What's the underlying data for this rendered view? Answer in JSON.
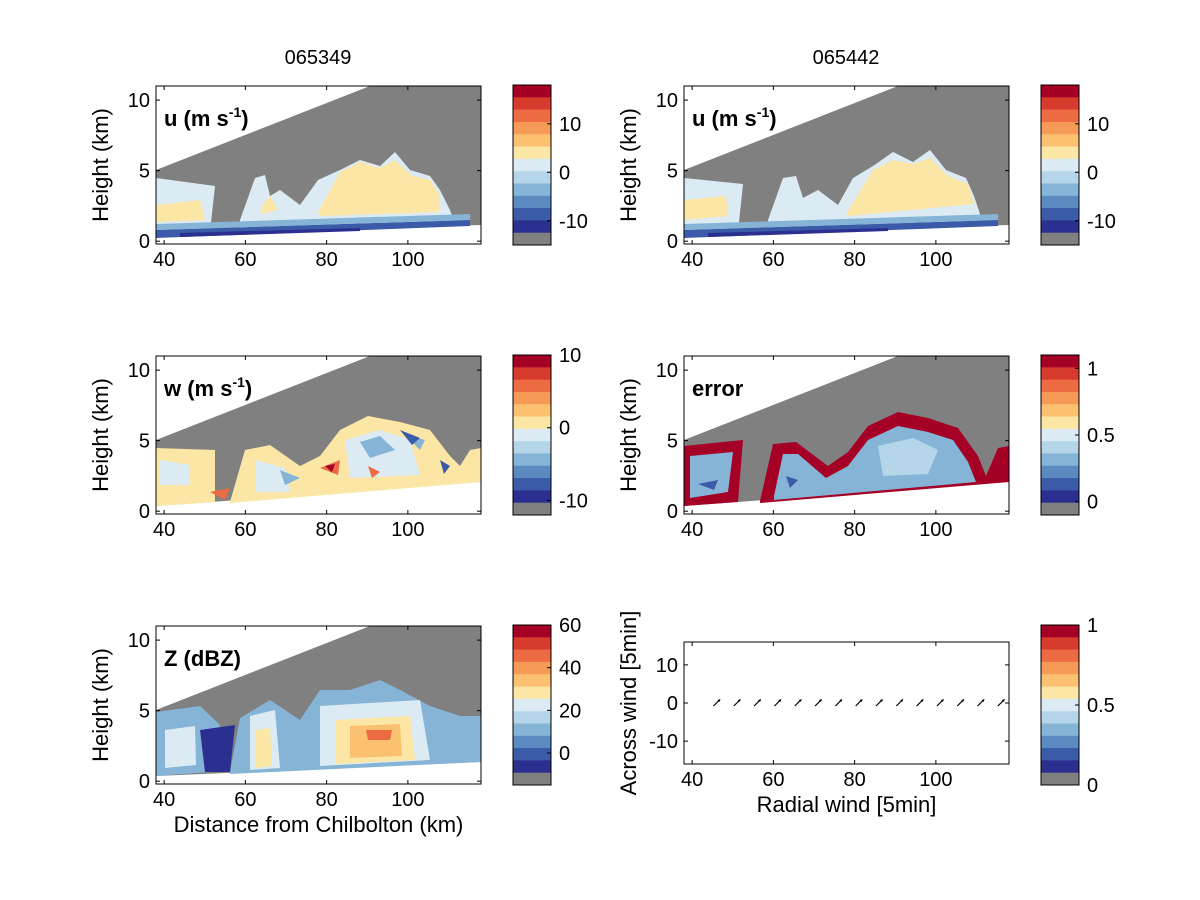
{
  "columns": [
    {
      "title": "065349"
    },
    {
      "title": "065442"
    }
  ],
  "colors": {
    "rdylbu": [
      "#2b2f8f",
      "#3b5ba8",
      "#5a8ac0",
      "#86b4d6",
      "#b5d6e8",
      "#dcebf3",
      "#fce6a6",
      "#fbc170",
      "#f69a57",
      "#ec6b43",
      "#d73b2e",
      "#a50026"
    ],
    "missing": "#808080",
    "frame": "#000000"
  },
  "chart_data": [
    {
      "type": "heatmap",
      "panel": "u",
      "label": "u (m s",
      "label_sup": "-1",
      "label_suffix": ")",
      "ylabel": "Height (km)",
      "xlabel": "",
      "xticks": [
        40,
        60,
        80,
        100
      ],
      "yticks": [
        0,
        5,
        10
      ],
      "xlim": [
        38,
        118
      ],
      "ylim": [
        -0.2,
        11
      ],
      "colorbar": {
        "ticks": [
          "10",
          "0",
          "-10"
        ],
        "tick_values": [
          10,
          0,
          -10
        ],
        "range": [
          -15,
          18
        ]
      },
      "field": "zonal wind u"
    },
    {
      "type": "heatmap",
      "panel": "u",
      "label": "u (m s",
      "label_sup": "-1",
      "label_suffix": ")",
      "ylabel": "Height (km)",
      "xlabel": "",
      "xticks": [
        40,
        60,
        80,
        100
      ],
      "yticks": [
        0,
        5,
        10
      ],
      "xlim": [
        38,
        118
      ],
      "ylim": [
        -0.2,
        11
      ],
      "colorbar": {
        "ticks": [
          "10",
          "0",
          "-10"
        ],
        "tick_values": [
          10,
          0,
          -10
        ],
        "range": [
          -15,
          18
        ]
      },
      "field": "zonal wind u"
    },
    {
      "type": "heatmap",
      "panel": "w",
      "label": "w (m s",
      "label_sup": "-1",
      "label_suffix": ")",
      "ylabel": "Height (km)",
      "xlabel": "",
      "xticks": [
        40,
        60,
        80,
        100
      ],
      "yticks": [
        0,
        5,
        10
      ],
      "xlim": [
        38,
        118
      ],
      "ylim": [
        -0.2,
        11
      ],
      "colorbar": {
        "ticks": [
          "10",
          "0",
          "-10"
        ],
        "tick_values": [
          10,
          0,
          -10
        ],
        "range": [
          -12,
          10
        ]
      },
      "field": "vertical wind w"
    },
    {
      "type": "heatmap",
      "panel": "error",
      "label": "error",
      "label_sup": "",
      "label_suffix": "",
      "ylabel": "Height (km)",
      "xlabel": "",
      "xticks": [
        40,
        60,
        80,
        100
      ],
      "yticks": [
        0,
        5,
        10
      ],
      "xlim": [
        38,
        118
      ],
      "ylim": [
        -0.2,
        11
      ],
      "colorbar": {
        "ticks": [
          "1",
          "0.5",
          "0"
        ],
        "tick_values": [
          1,
          0.5,
          0
        ],
        "range": [
          -0.1,
          1.1
        ]
      },
      "field": "error"
    },
    {
      "type": "heatmap",
      "panel": "Z",
      "label": "Z (dBZ)",
      "label_sup": "",
      "label_suffix": "",
      "ylabel": "Height (km)",
      "xlabel": "Distance from Chilbolton (km)",
      "xticks": [
        40,
        60,
        80,
        100
      ],
      "yticks": [
        0,
        5,
        10
      ],
      "xlim": [
        38,
        118
      ],
      "ylim": [
        -0.2,
        11
      ],
      "colorbar": {
        "ticks": [
          "60",
          "40",
          "20",
          "0"
        ],
        "tick_values": [
          60,
          40,
          20,
          0
        ],
        "range": [
          -15,
          60
        ]
      },
      "field": "reflectivity Z"
    },
    {
      "type": "scatter",
      "panel": "vectors",
      "label": "",
      "ylabel": "Across wind [5min]",
      "xlabel": "Radial wind [5min]",
      "xticks": [
        40,
        60,
        80,
        100
      ],
      "yticks": [
        -10,
        0,
        10
      ],
      "xlim": [
        38,
        118
      ],
      "ylim": [
        -16,
        16
      ],
      "colorbar": {
        "ticks": [
          "1",
          "0.5",
          "0"
        ],
        "tick_values": [
          1,
          0.5,
          0
        ],
        "range": [
          0,
          1
        ]
      },
      "x": [
        46,
        51,
        56,
        61,
        66,
        71,
        76,
        81,
        86,
        91,
        96,
        101,
        106,
        111,
        116
      ],
      "y": [
        0,
        0,
        0,
        0,
        0,
        0,
        0,
        0,
        0,
        0,
        0,
        0,
        0,
        0,
        0
      ]
    }
  ]
}
